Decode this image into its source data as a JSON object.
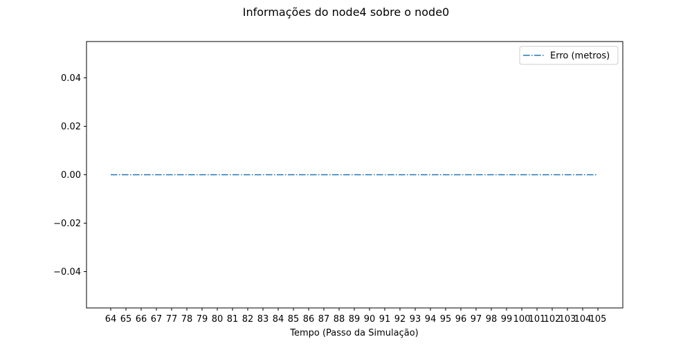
{
  "chart_data": {
    "type": "line",
    "title": "Informações do node4 sobre o node0",
    "xlabel": "Tempo (Passo da Simulação)",
    "ylabel": "",
    "categories": [
      "64",
      "65",
      "66",
      "67",
      "77",
      "78",
      "79",
      "80",
      "81",
      "82",
      "83",
      "84",
      "85",
      "86",
      "87",
      "88",
      "89",
      "90",
      "91",
      "92",
      "93",
      "94",
      "95",
      "96",
      "97",
      "98",
      "99",
      "100",
      "101",
      "102",
      "103",
      "104",
      "105"
    ],
    "series": [
      {
        "name": "Erro (metros)",
        "values": [
          0,
          0,
          0,
          0,
          0,
          0,
          0,
          0,
          0,
          0,
          0,
          0,
          0,
          0,
          0,
          0,
          0,
          0,
          0,
          0,
          0,
          0,
          0,
          0,
          0,
          0,
          0,
          0,
          0,
          0,
          0,
          0,
          0
        ],
        "color": "#1f77b4",
        "linestyle": "dashdot"
      }
    ],
    "ylim": [
      -0.055,
      0.055
    ],
    "yticks": [
      "0.04",
      "0.02",
      "0.00",
      "−0.02",
      "−0.04"
    ],
    "ytick_values": [
      0.04,
      0.02,
      0.0,
      -0.02,
      -0.04
    ],
    "legend_position": "top-right",
    "grid": false
  }
}
